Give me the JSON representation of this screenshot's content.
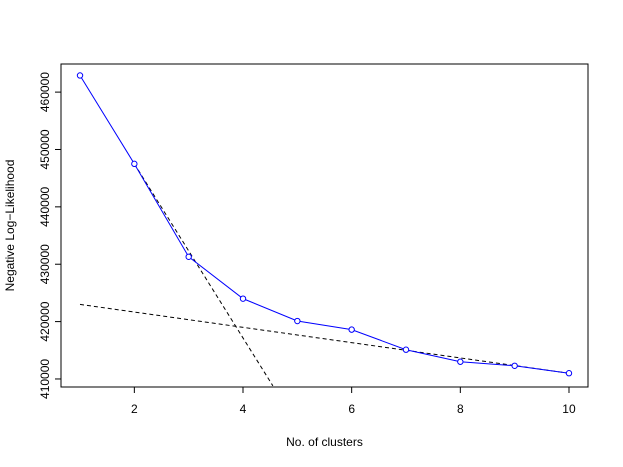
{
  "chart_data": {
    "type": "line",
    "title": "",
    "xlabel": "No. of clusters",
    "ylabel": "Negative Log−Likelihood",
    "x": [
      1,
      2,
      3,
      4,
      5,
      6,
      7,
      8,
      9,
      10
    ],
    "series": [
      {
        "values": [
          462900,
          447500,
          431300,
          424000,
          420100,
          418600,
          415100,
          413000,
          412300,
          411000
        ],
        "color": "#0000ff",
        "marker": "open-circle"
      }
    ],
    "reference_lines": [
      {
        "from": [
          2,
          447500
        ],
        "to": [
          4.55,
          408800
        ],
        "style": "dashed",
        "color": "#000000"
      },
      {
        "from": [
          1,
          423000
        ],
        "to": [
          10,
          411000
        ],
        "style": "dashed",
        "color": "#000000"
      }
    ],
    "xlim": [
      0.65,
      10.35
    ],
    "ylim": [
      408600,
      464900
    ],
    "xticks": [
      2,
      4,
      6,
      8,
      10
    ],
    "yticks": [
      410000,
      420000,
      430000,
      440000,
      450000,
      460000
    ],
    "grid": false,
    "legend": "none"
  }
}
